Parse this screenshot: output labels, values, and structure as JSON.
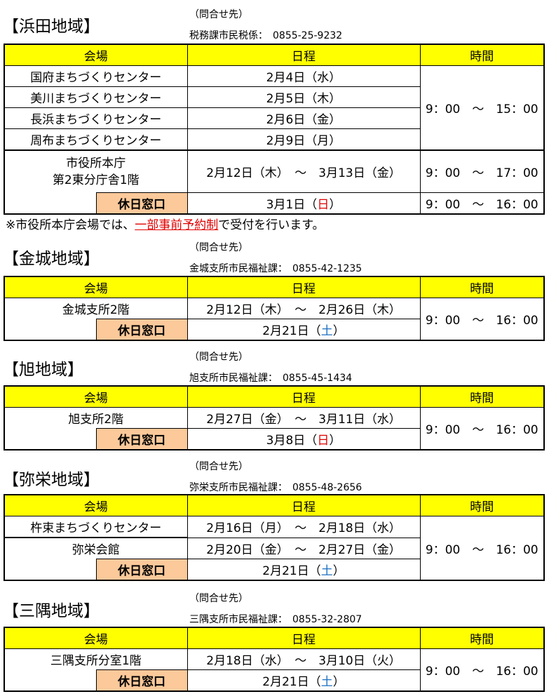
{
  "header": {
    "venue": "会場",
    "schedule": "日程",
    "time": "時間",
    "contact_label": "（問合せ先）",
    "holiday": "休日窓口",
    "tilde": "～"
  },
  "s1": {
    "title": "【浜田地域】",
    "contact": "税務課市民税係：　0855-25-9232",
    "rows": [
      {
        "venue": "国府まちづくりセンター",
        "date": "2月4日（水）"
      },
      {
        "venue": "美川まちづくりセンター",
        "date": "2月5日（木）"
      },
      {
        "venue": "長浜まちづくりセンター",
        "date": "2月6日（金）"
      },
      {
        "venue": "周布まちづくりセンター",
        "date": "2月9日（月）"
      }
    ],
    "time1": "9：00　～　15：00",
    "venue2a": "市役所本庁",
    "venue2b": "第2東分庁舎1階",
    "date2_from": "2月12日（木）",
    "date2_to": "3月13日（金）",
    "time2": "9：00　～　17：00",
    "hol_date": "3月1日（",
    "hol_day": "日",
    "hol_close": "）",
    "hol_time": "9：00　～　16：00",
    "note_pre": "※市役所本庁会場では、",
    "note_link": "一部事前予約制",
    "note_post": "で受付を行います。"
  },
  "s2": {
    "title": "【金城地域】",
    "contact": "金城支所市民福祉課：　0855-42-1235",
    "venue": "金城支所2階",
    "from": "2月12日（木）",
    "to": "2月26日（木）",
    "hol_date": "2月21日（",
    "hol_day": "土",
    "hol_close": "）",
    "time": "9：00　～　16：00"
  },
  "s3": {
    "title": "【旭地域】",
    "contact": "旭支所市民福祉課：　0855-45-1434",
    "venue": "旭支所2階",
    "from": "2月27日（金）",
    "to": "3月11日（水）",
    "hol_date": "3月8日（",
    "hol_day": "日",
    "hol_close": "）",
    "time": "9：00　～　16：00"
  },
  "s4": {
    "title": "【弥栄地域】",
    "contact": "弥栄支所市民福祉課：　0855-48-2656",
    "venue1": "杵束まちづくりセンター",
    "from1": "2月16日（月）",
    "to1": "2月18日（水）",
    "venue2": "弥栄会館",
    "from2": "2月20日（金）",
    "to2": "2月27日（金）",
    "hol_date": "2月21日（",
    "hol_day": "土",
    "hol_close": "）",
    "time": "9：00　～　16：00"
  },
  "s5": {
    "title": "【三隅地域】",
    "contact": "三隅支所市民福祉課：　0855-32-2807",
    "venue": "三隅支所分室1階",
    "from": "2月18日（水）",
    "to": "3月10日（火）",
    "hol_date": "2月21日（",
    "hol_day": "土",
    "hol_close": "）",
    "time": "9：00　～　16：00"
  },
  "colors": {
    "header": "#ffff00",
    "holiday": "#fbc99a",
    "sunday": "#e00000",
    "saturday": "#1b6fc0"
  }
}
